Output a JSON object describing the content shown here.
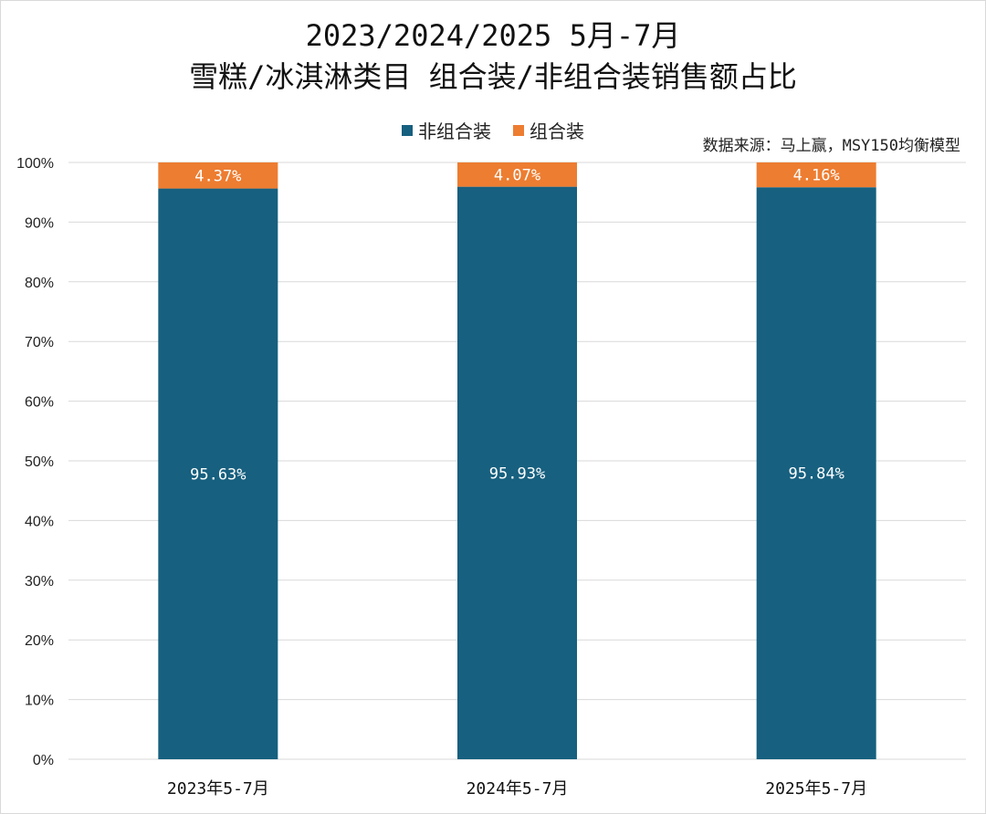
{
  "chart_data": {
    "type": "bar",
    "stacked": true,
    "title": "2023/2024/2025 5月-7月",
    "subtitle": "雪糕/冰淇淋类目 组合装/非组合装销售额占比",
    "source_note": "数据来源：马上赢，MSY150均衡模型",
    "categories": [
      "2023年5-7月",
      "2024年5-7月",
      "2025年5-7月"
    ],
    "series": [
      {
        "name": "非组合装",
        "color": "#17607f",
        "values": [
          95.63,
          95.93,
          95.84
        ],
        "labels": [
          "95.63%",
          "95.93%",
          "95.84%"
        ]
      },
      {
        "name": "组合装",
        "color": "#ed7d31",
        "values": [
          4.37,
          4.07,
          4.16
        ],
        "labels": [
          "4.37%",
          "4.07%",
          "4.16%"
        ]
      }
    ],
    "ylim": [
      0,
      100
    ],
    "yticks": [
      0,
      10,
      20,
      30,
      40,
      50,
      60,
      70,
      80,
      90,
      100
    ],
    "ytick_labels": [
      "0%",
      "10%",
      "20%",
      "30%",
      "40%",
      "50%",
      "60%",
      "70%",
      "80%",
      "90%",
      "100%"
    ],
    "grid": true,
    "legend_position": "top-center"
  }
}
